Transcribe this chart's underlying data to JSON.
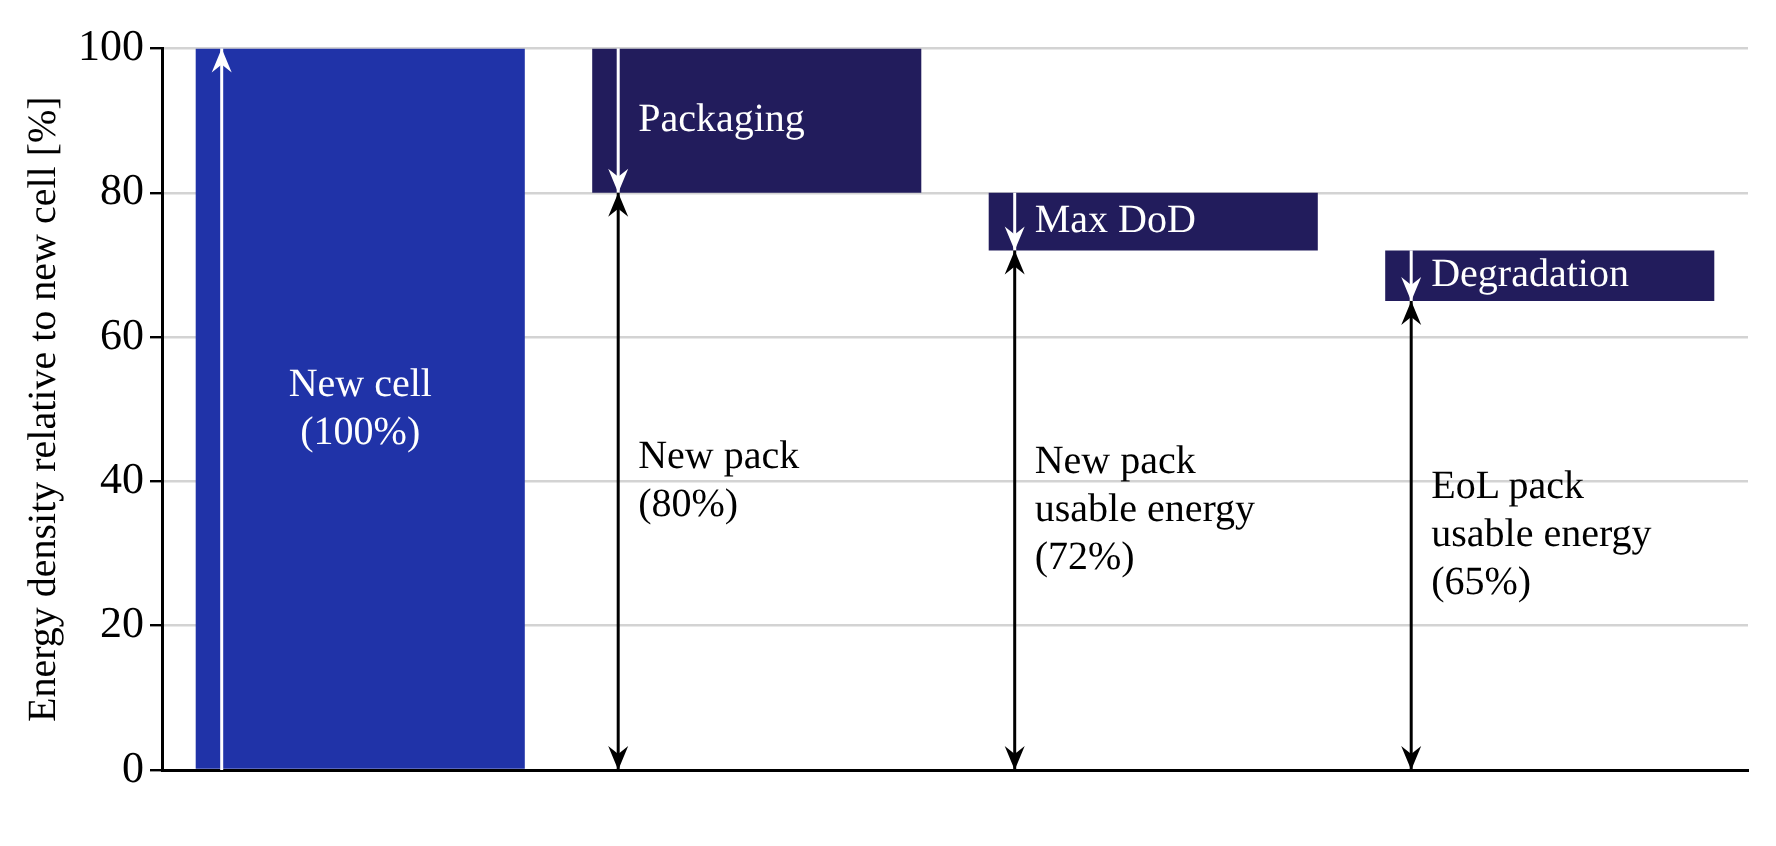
{
  "chart_data": {
    "type": "bar",
    "categories": [
      null,
      null,
      null,
      null
    ],
    "values": [
      100,
      20,
      8,
      7
    ],
    "base": [
      0,
      80,
      72,
      65
    ],
    "colors": [
      "#2033a8",
      "#221c5c",
      "#221c5c",
      "#221c5c"
    ],
    "ylabel": "Energy density relative to new cell [%]",
    "ylim": [
      0,
      100
    ],
    "yticks": [
      0,
      20,
      40,
      60,
      80,
      100
    ],
    "grid": "y",
    "annotations": [
      "New cell\n(100%)",
      "New pack\n(80%)",
      "New pack\nusable energy\n(72%)",
      "EoL pack\nusable energy\n(65%)",
      "Packaging",
      "Max DoD",
      "Degradation"
    ]
  }
}
